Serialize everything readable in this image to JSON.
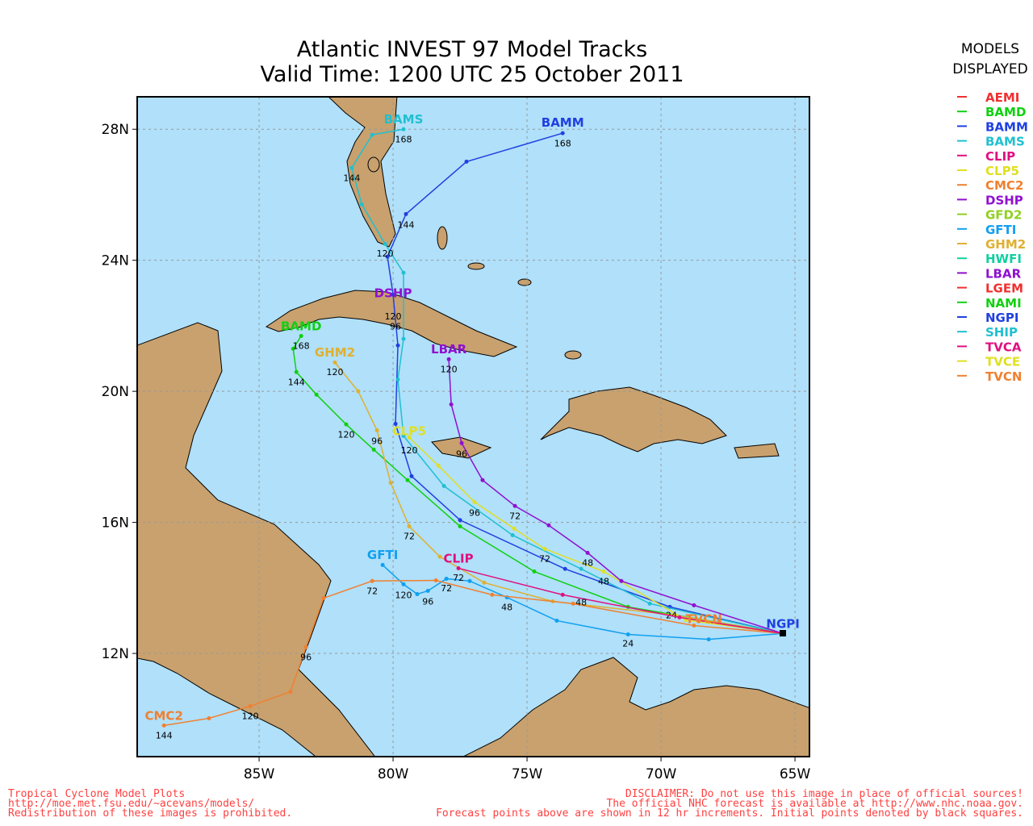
{
  "chart_data": {
    "type": "map",
    "title": [
      "Atlantic INVEST 97 Model Tracks",
      "Valid Time: 1200 UTC 25 October 2011"
    ],
    "xlim": [
      -89.55,
      -64.46
    ],
    "ylim": [
      8.85,
      28.99
    ],
    "xticks": [
      {
        "value": -85,
        "label": "85W"
      },
      {
        "value": -80,
        "label": "80W"
      },
      {
        "value": -75,
        "label": "75W"
      },
      {
        "value": -70,
        "label": "70W"
      },
      {
        "value": -65,
        "label": "65W"
      }
    ],
    "yticks": [
      {
        "value": 28,
        "label": "28N"
      },
      {
        "value": 24,
        "label": "24N"
      },
      {
        "value": 20,
        "label": "20N"
      },
      {
        "value": 16,
        "label": "16N"
      },
      {
        "value": 12,
        "label": "12N"
      }
    ],
    "grid": true,
    "legend_title": [
      "MODELS",
      "DISPLAYED"
    ],
    "legend": [
      {
        "name": "AEMI",
        "color": "#f03030"
      },
      {
        "name": "BAMD",
        "color": "#10d010"
      },
      {
        "name": "BAMM",
        "color": "#2040e0"
      },
      {
        "name": "BAMS",
        "color": "#20c0d0"
      },
      {
        "name": "CLIP",
        "color": "#e01080"
      },
      {
        "name": "CLP5",
        "color": "#e0e020"
      },
      {
        "name": "CMC2",
        "color": "#f08030"
      },
      {
        "name": "DSHP",
        "color": "#9010d0"
      },
      {
        "name": "GFD2",
        "color": "#90d020"
      },
      {
        "name": "GFTI",
        "color": "#10a0f0"
      },
      {
        "name": "GHM2",
        "color": "#e0b030"
      },
      {
        "name": "HWFI",
        "color": "#10d0a0"
      },
      {
        "name": "LBAR",
        "color": "#9010d0"
      },
      {
        "name": "LGEM",
        "color": "#f03030"
      },
      {
        "name": "NAMI",
        "color": "#10d010"
      },
      {
        "name": "NGPI",
        "color": "#2040e0"
      },
      {
        "name": "SHIP",
        "color": "#20c0d0"
      },
      {
        "name": "TVCA",
        "color": "#e01080"
      },
      {
        "name": "TVCE",
        "color": "#e0e020"
      },
      {
        "name": "TVCN",
        "color": "#f08030"
      }
    ],
    "tracks": [
      {
        "label": "BAMM",
        "color": "#2040e0",
        "label_lon": -73.67,
        "label_lat": 28.2,
        "lon": [
          -65.45,
          -69.67,
          -73.58,
          -77.5,
          -79.31,
          -79.91,
          -79.82,
          -80.0,
          -80.21,
          -79.52,
          -77.26,
          -73.67
        ],
        "lat": [
          12.61,
          13.42,
          14.58,
          16.07,
          17.41,
          19.01,
          21.4,
          22.95,
          24.11,
          25.41,
          27.01,
          27.88
        ],
        "hours": [
          {
            "text": "120",
            "lon": -80.0,
            "lat": 22.29
          },
          {
            "text": "144",
            "lon": -79.52,
            "lat": 25.09
          },
          {
            "text": "168",
            "lon": -73.67,
            "lat": 27.58
          }
        ]
      },
      {
        "label": "BAMS",
        "color": "#20c0d0",
        "label_lon": -79.61,
        "label_lat": 28.3,
        "lon": [
          -65.45,
          -70.42,
          -72.98,
          -75.54,
          -78.1,
          -79.61,
          -79.82,
          -79.61,
          -79.61,
          -80.3,
          -81.17,
          -81.54,
          -80.78,
          -79.61
        ],
        "lat": [
          12.61,
          13.52,
          14.58,
          15.61,
          17.11,
          18.64,
          20.36,
          21.6,
          23.62,
          24.5,
          25.71,
          26.82,
          27.83,
          28.0
        ],
        "hours": [
          {
            "text": "96",
            "lon": -79.91,
            "lat": 21.99
          },
          {
            "text": "120",
            "lon": -80.3,
            "lat": 24.21
          },
          {
            "text": "144",
            "lon": -81.54,
            "lat": 26.52
          },
          {
            "text": "168",
            "lon": -79.61,
            "lat": 27.7
          }
        ]
      },
      {
        "label": "BAMD",
        "color": "#10d010",
        "label_lon": -83.43,
        "label_lat": 21.99,
        "lon": [
          -65.45,
          -71.23,
          -74.73,
          -77.5,
          -79.46,
          -80.72,
          -81.75,
          -82.86,
          -83.61,
          -83.73,
          -83.43
        ],
        "lat": [
          12.61,
          13.42,
          14.5,
          15.88,
          17.29,
          18.22,
          18.99,
          19.9,
          20.59,
          21.3,
          21.69
        ],
        "hours": [
          {
            "text": "120",
            "lon": -81.75,
            "lat": 18.69
          },
          {
            "text": "144",
            "lon": -83.61,
            "lat": 20.29
          },
          {
            "text": "168",
            "lon": -83.43,
            "lat": 21.4
          }
        ]
      },
      {
        "label": "GFTI",
        "color": "#10a0f0",
        "label_lon": -80.39,
        "label_lat": 15.0,
        "lon": [
          -65.45,
          -68.22,
          -71.23,
          -73.89,
          -75.75,
          -77.14,
          -78.01,
          -78.7,
          -79.1,
          -79.61,
          -80.39
        ],
        "lat": [
          12.61,
          12.43,
          12.58,
          13.0,
          13.71,
          14.21,
          14.28,
          13.91,
          13.81,
          14.11,
          14.7
        ],
        "hours": [
          {
            "text": "24",
            "lon": -71.23,
            "lat": 12.31
          },
          {
            "text": "48",
            "lon": -75.75,
            "lat": 13.42
          },
          {
            "text": "72",
            "lon": -78.01,
            "lat": 13.99
          },
          {
            "text": "96",
            "lon": -78.7,
            "lat": 13.59
          },
          {
            "text": "120",
            "lon": -79.61,
            "lat": 13.79
          }
        ]
      },
      {
        "label": "GHM2",
        "color": "#e0b030",
        "label_lon": -82.17,
        "label_lat": 21.18,
        "lon": [
          -65.45,
          -69.52,
          -74.04,
          -76.6,
          -78.25,
          -79.4,
          -80.09,
          -80.6,
          -81.3,
          -82.17
        ],
        "lat": [
          12.61,
          13.17,
          13.59,
          14.16,
          14.95,
          15.88,
          17.21,
          18.81,
          20.0,
          20.88
        ],
        "hours": [
          {
            "text": "72",
            "lon": -79.4,
            "lat": 15.59
          },
          {
            "text": "96",
            "lon": -80.6,
            "lat": 18.49
          },
          {
            "text": "120",
            "lon": -82.17,
            "lat": 20.59
          }
        ]
      },
      {
        "label": "CLP5",
        "color": "#e0e020",
        "label_lon": -79.4,
        "label_lat": 18.79,
        "lon": [
          -65.45,
          -69.07,
          -72.14,
          -74.34,
          -75.48,
          -76.96,
          -78.31,
          -79.4
        ],
        "lat": [
          12.61,
          13.02,
          14.5,
          15.19,
          15.81,
          16.62,
          17.73,
          18.59
        ],
        "hours": [
          {
            "text": "48",
            "lon": -72.14,
            "lat": 14.21
          },
          {
            "text": "72",
            "lon": -74.34,
            "lat": 14.9
          },
          {
            "text": "96",
            "lon": -76.96,
            "lat": 16.3
          },
          {
            "text": "120",
            "lon": -79.4,
            "lat": 18.2
          }
        ]
      },
      {
        "label": "LBAR",
        "color": "#9010d0",
        "label_lon": -77.92,
        "label_lat": 21.28,
        "lon": [
          -65.45,
          -68.77,
          -71.48,
          -72.74,
          -74.19,
          -75.45,
          -76.66,
          -77.44,
          -77.83,
          -77.92
        ],
        "lat": [
          12.61,
          13.47,
          14.21,
          15.07,
          15.91,
          16.5,
          17.29,
          18.42,
          19.6,
          20.98
        ],
        "hours": [
          {
            "text": "24",
            "lon": -69.61,
            "lat": 13.17
          },
          {
            "text": "48",
            "lon": -72.74,
            "lat": 14.77
          },
          {
            "text": "72",
            "lon": -75.45,
            "lat": 16.2
          },
          {
            "text": "96",
            "lon": -77.44,
            "lat": 18.1
          },
          {
            "text": "120",
            "lon": -77.92,
            "lat": 20.68
          }
        ]
      },
      {
        "label": "CMC2",
        "color": "#f08030",
        "label_lon": -88.55,
        "label_lat": 10.09,
        "lon": [
          -65.45,
          -68.77,
          -73.28,
          -76.3,
          -78.4,
          -80.78,
          -82.59,
          -83.25,
          -83.83,
          -85.33,
          -86.87,
          -88.55
        ],
        "lat": [
          12.61,
          12.85,
          13.52,
          13.79,
          14.23,
          14.21,
          13.69,
          12.19,
          10.83,
          10.39,
          10.02,
          9.8
        ],
        "hours": [
          {
            "text": "72",
            "lon": -80.78,
            "lat": 13.91
          },
          {
            "text": "96",
            "lon": -83.25,
            "lat": 11.89
          },
          {
            "text": "120",
            "lon": -85.33,
            "lat": 10.09
          },
          {
            "text": "144",
            "lon": -88.55,
            "lat": 9.5
          }
        ]
      },
      {
        "label": "CLIP",
        "color": "#e01080",
        "label_lon": -77.56,
        "label_lat": 14.9,
        "lon": [
          -65.45,
          -69.31,
          -73.67,
          -77.56
        ],
        "lat": [
          12.61,
          13.1,
          13.79,
          14.6
        ],
        "hours": [
          {
            "text": "48",
            "lon": -72.98,
            "lat": 13.57
          },
          {
            "text": "72",
            "lon": -77.56,
            "lat": 14.31
          }
        ]
      }
    ],
    "annotations": [
      {
        "text": "NGPI",
        "color": "#2040e0",
        "lon": -65.45,
        "lat": 12.9
      },
      {
        "text": "TVCN",
        "color": "#f08030",
        "lon": -68.4,
        "lat": 13.05
      },
      {
        "text": "DSHP",
        "color": "#9010d0",
        "lon": -80.0,
        "lat": 23.0
      }
    ],
    "footer_left": [
      "Tropical Cyclone Model Plots",
      "http://moe.met.fsu.edu/~acevans/models/",
      "Redistribution of these images is prohibited."
    ],
    "footer_right": [
      "DISCLAIMER: Do not use this image in place of official sources!",
      "The official NHC forecast is available at http://www.nhc.noaa.gov.",
      "Forecast points above are shown in 12 hr increments. Initial points denoted by black squares."
    ]
  }
}
